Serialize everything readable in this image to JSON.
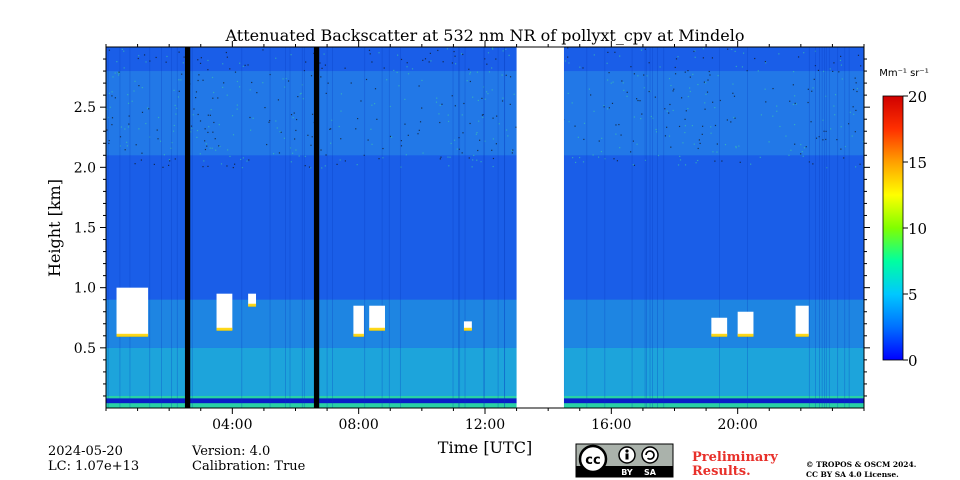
{
  "chart_data": {
    "type": "heatmap",
    "title": "Attenuated Backscatter at 532 nm NR of pollyxt_cpv at Mindelo",
    "xlabel": "Time [UTC]",
    "ylabel": "Height [km]",
    "x_ticks": [
      "04:00",
      "08:00",
      "12:00",
      "16:00",
      "20:00"
    ],
    "y_ticks": [
      "0.5",
      "1.0",
      "1.5",
      "2.0",
      "2.5"
    ],
    "x_range_hours": [
      0,
      24
    ],
    "y_range_km": [
      0.0,
      3.0
    ],
    "grid": false,
    "colorbar": {
      "label": "Mm⁻¹ sr⁻¹",
      "range": [
        0,
        20
      ],
      "ticks": [
        "0",
        "5",
        "10",
        "15",
        "20"
      ],
      "colors": [
        "#0000ff",
        "#0070ff",
        "#00c8ff",
        "#00ffa0",
        "#80ff00",
        "#ffff00",
        "#ffa000",
        "#ff3000",
        "#d00000"
      ]
    },
    "no_data_intervals_utc": [
      [
        "02:30",
        "02:40"
      ],
      [
        "06:35",
        "06:45"
      ]
    ],
    "missing_data_intervals_utc": [
      [
        "13:00",
        "14:30"
      ]
    ],
    "cloud_layers": [
      {
        "start_utc": "00:20",
        "end_utc": "01:20",
        "base_km": 0.6,
        "top_km": 1.0
      },
      {
        "start_utc": "03:30",
        "end_utc": "04:00",
        "base_km": 0.65,
        "top_km": 0.95
      },
      {
        "start_utc": "04:30",
        "end_utc": "04:45",
        "base_km": 0.85,
        "top_km": 0.95
      },
      {
        "start_utc": "07:50",
        "end_utc": "08:10",
        "base_km": 0.6,
        "top_km": 0.85
      },
      {
        "start_utc": "08:20",
        "end_utc": "08:50",
        "base_km": 0.65,
        "top_km": 0.85
      },
      {
        "start_utc": "11:20",
        "end_utc": "11:35",
        "base_km": 0.65,
        "top_km": 0.72
      },
      {
        "start_utc": "19:10",
        "end_utc": "19:40",
        "base_km": 0.6,
        "top_km": 0.75
      },
      {
        "start_utc": "20:00",
        "end_utc": "20:30",
        "base_km": 0.6,
        "top_km": 0.8
      },
      {
        "start_utc": "21:50",
        "end_utc": "22:15",
        "base_km": 0.6,
        "top_km": 0.85
      }
    ]
  },
  "footer": {
    "date": "2024-05-20",
    "lc": "LC: 1.07e+13",
    "version": "Version: 4.0",
    "calibration": "Calibration: True",
    "preliminary_line1": "Preliminary",
    "preliminary_line2": "Results.",
    "copyright_line1": "© TROPOS & OSCM 2024.",
    "copyright_line2": "CC BY SA 4.0 License.",
    "license_by": "BY",
    "license_sa": "SA",
    "license_cc": "cc",
    "preliminary_color": "#e8302a"
  }
}
